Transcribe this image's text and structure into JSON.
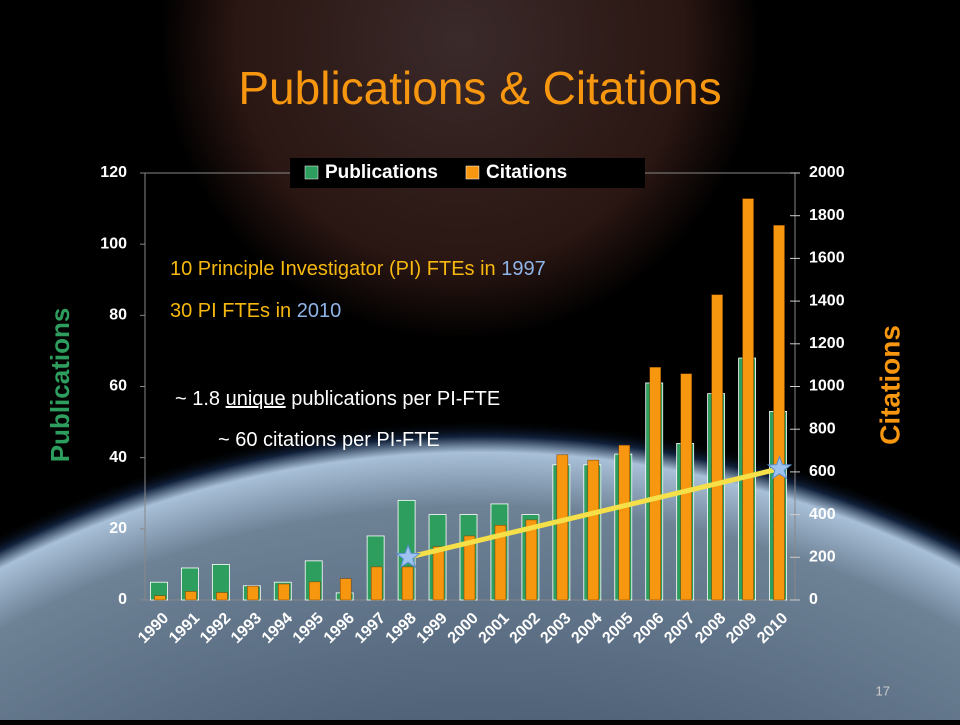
{
  "title": "Publications & Citations",
  "page_number": "17",
  "chart_data": {
    "type": "bar",
    "categories": [
      "1990",
      "1991",
      "1992",
      "1993",
      "1994",
      "1995",
      "1996",
      "1997",
      "1998",
      "1999",
      "2000",
      "2001",
      "2002",
      "2003",
      "2004",
      "2005",
      "2006",
      "2007",
      "2008",
      "2009",
      "2010"
    ],
    "series": [
      {
        "name": "Publications",
        "color": "#2e9e5e",
        "axis": "y",
        "values": [
          5,
          9,
          10,
          4,
          5,
          11,
          2,
          18,
          28,
          24,
          24,
          27,
          24,
          38,
          38,
          41,
          61,
          44,
          58,
          68,
          53
        ]
      },
      {
        "name": "Citations",
        "color": "#f7960f",
        "axis": "y2",
        "values": [
          20,
          40,
          35,
          65,
          75,
          85,
          100,
          155,
          155,
          250,
          300,
          350,
          375,
          680,
          655,
          725,
          1090,
          1060,
          1430,
          1880,
          1755
        ]
      }
    ],
    "ylabel": "Publications",
    "y2label": "Citations",
    "ylim": [
      0,
      120
    ],
    "yticks": [
      0,
      20,
      40,
      60,
      80,
      100,
      120
    ],
    "y2lim": [
      0,
      2000
    ],
    "y2ticks": [
      0,
      200,
      400,
      600,
      800,
      1000,
      1200,
      1400,
      1600,
      1800,
      2000
    ],
    "legend": "top",
    "trend": {
      "x": [
        "1998",
        "2010"
      ],
      "values": [
        200,
        615
      ],
      "axis": "y2",
      "color": "#f5e04a"
    },
    "annotations": [
      {
        "parts": [
          "10 Principle Investigator (PI) FTEs in ",
          "1997"
        ]
      },
      {
        "parts": [
          "30 PI FTEs in ",
          "2010"
        ]
      },
      {
        "parts": [
          "~ 1.8 ",
          "unique",
          " publications per PI-FTE"
        ]
      },
      {
        "parts": [
          "~ 60 citations per PI-FTE"
        ]
      }
    ]
  }
}
